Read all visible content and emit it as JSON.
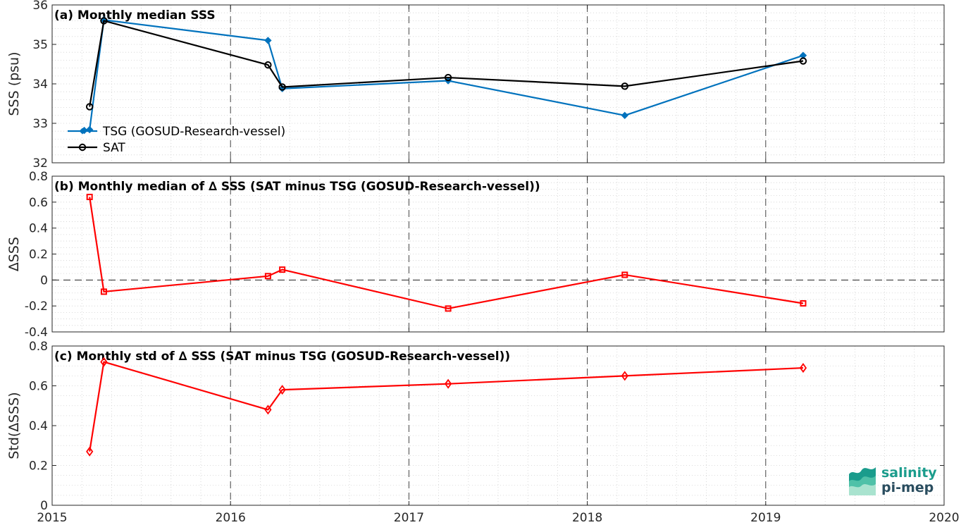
{
  "chart_data": [
    {
      "type": "line",
      "title": "(a) Monthly median SSS",
      "ylabel": "SSS (psu)",
      "ylim": [
        32,
        36
      ],
      "yticks": [
        "32",
        "33",
        "34",
        "35",
        "36"
      ],
      "xlim": [
        2015,
        2020
      ],
      "grid": true,
      "legend": "bottom-left",
      "series": [
        {
          "name": "TSG (GOSUD-Research-vessel)",
          "color": "#0072bd",
          "marker": "diamond",
          "x": [
            2015.18,
            2015.21,
            2015.29,
            2016.21,
            2016.29,
            2017.22,
            2018.21,
            2019.21
          ],
          "values": [
            32.82,
            32.84,
            35.62,
            35.1,
            33.88,
            34.08,
            33.2,
            34.72
          ]
        },
        {
          "name": "SAT",
          "color": "#000000",
          "marker": "circle",
          "x": [
            2015.21,
            2015.29,
            2016.21,
            2016.29,
            2017.22,
            2018.21,
            2019.21
          ],
          "values": [
            33.42,
            35.6,
            34.48,
            33.92,
            34.16,
            33.94,
            34.58
          ]
        }
      ]
    },
    {
      "type": "line",
      "title": "(b) Monthly median of ∆ SSS (SAT minus TSG (GOSUD-Research-vessel))",
      "ylabel": "∆SSS",
      "ylim": [
        -0.4,
        0.8
      ],
      "yticks": [
        "-0.4",
        "-0.2",
        "0",
        "0.2",
        "0.4",
        "0.6",
        "0.8"
      ],
      "xlim": [
        2015,
        2020
      ],
      "grid": true,
      "zero_line": true,
      "series": [
        {
          "color": "#ff0000",
          "marker": "square",
          "x": [
            2015.21,
            2015.29,
            2016.21,
            2016.29,
            2017.22,
            2018.21,
            2019.21
          ],
          "values": [
            0.64,
            -0.09,
            0.03,
            0.08,
            -0.22,
            0.04,
            -0.18
          ]
        }
      ]
    },
    {
      "type": "line",
      "title": "(c) Monthly std of ∆ SSS (SAT minus TSG (GOSUD-Research-vessel))",
      "ylabel": "Std(∆SSS)",
      "ylim": [
        0,
        0.8
      ],
      "yticks": [
        "0",
        "0.2",
        "0.4",
        "0.6",
        "0.8"
      ],
      "xlim": [
        2015,
        2020
      ],
      "xticks": [
        "2015",
        "2016",
        "2017",
        "2018",
        "2019",
        "2020"
      ],
      "grid": true,
      "series": [
        {
          "color": "#ff0000",
          "marker": "diamond-open",
          "x": [
            2015.21,
            2015.29,
            2016.21,
            2016.29,
            2017.22,
            2018.21,
            2019.21
          ],
          "values": [
            0.27,
            0.72,
            0.48,
            0.58,
            0.61,
            0.65,
            0.69
          ]
        }
      ]
    }
  ],
  "logo": {
    "line1": "salinity",
    "line2": "pi-mep"
  }
}
